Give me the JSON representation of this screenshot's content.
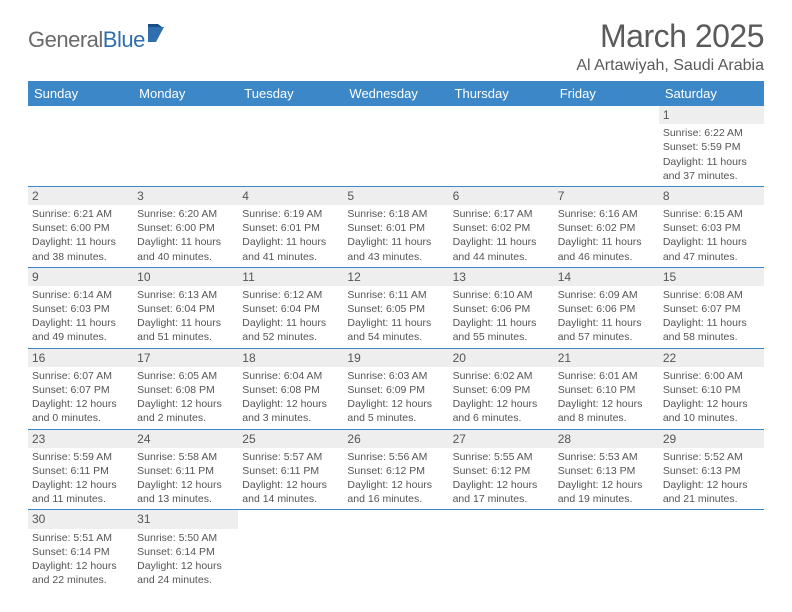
{
  "logo": {
    "text1": "General",
    "text2": "Blue"
  },
  "title": "March 2025",
  "location": "Al Artawiyah, Saudi Arabia",
  "colors": {
    "header_bg": "#3b87c8",
    "header_text": "#ffffff",
    "border": "#3b87c8",
    "daynum_bg": "#eeeeee",
    "text": "#555555",
    "logo_gray": "#6a6a6a",
    "logo_blue": "#2f6fb0"
  },
  "weekdays": [
    "Sunday",
    "Monday",
    "Tuesday",
    "Wednesday",
    "Thursday",
    "Friday",
    "Saturday"
  ],
  "weeks": [
    [
      null,
      null,
      null,
      null,
      null,
      null,
      {
        "n": "1",
        "l1": "Sunrise: 6:22 AM",
        "l2": "Sunset: 5:59 PM",
        "l3": "Daylight: 11 hours",
        "l4": "and 37 minutes."
      }
    ],
    [
      {
        "n": "2",
        "l1": "Sunrise: 6:21 AM",
        "l2": "Sunset: 6:00 PM",
        "l3": "Daylight: 11 hours",
        "l4": "and 38 minutes."
      },
      {
        "n": "3",
        "l1": "Sunrise: 6:20 AM",
        "l2": "Sunset: 6:00 PM",
        "l3": "Daylight: 11 hours",
        "l4": "and 40 minutes."
      },
      {
        "n": "4",
        "l1": "Sunrise: 6:19 AM",
        "l2": "Sunset: 6:01 PM",
        "l3": "Daylight: 11 hours",
        "l4": "and 41 minutes."
      },
      {
        "n": "5",
        "l1": "Sunrise: 6:18 AM",
        "l2": "Sunset: 6:01 PM",
        "l3": "Daylight: 11 hours",
        "l4": "and 43 minutes."
      },
      {
        "n": "6",
        "l1": "Sunrise: 6:17 AM",
        "l2": "Sunset: 6:02 PM",
        "l3": "Daylight: 11 hours",
        "l4": "and 44 minutes."
      },
      {
        "n": "7",
        "l1": "Sunrise: 6:16 AM",
        "l2": "Sunset: 6:02 PM",
        "l3": "Daylight: 11 hours",
        "l4": "and 46 minutes."
      },
      {
        "n": "8",
        "l1": "Sunrise: 6:15 AM",
        "l2": "Sunset: 6:03 PM",
        "l3": "Daylight: 11 hours",
        "l4": "and 47 minutes."
      }
    ],
    [
      {
        "n": "9",
        "l1": "Sunrise: 6:14 AM",
        "l2": "Sunset: 6:03 PM",
        "l3": "Daylight: 11 hours",
        "l4": "and 49 minutes."
      },
      {
        "n": "10",
        "l1": "Sunrise: 6:13 AM",
        "l2": "Sunset: 6:04 PM",
        "l3": "Daylight: 11 hours",
        "l4": "and 51 minutes."
      },
      {
        "n": "11",
        "l1": "Sunrise: 6:12 AM",
        "l2": "Sunset: 6:04 PM",
        "l3": "Daylight: 11 hours",
        "l4": "and 52 minutes."
      },
      {
        "n": "12",
        "l1": "Sunrise: 6:11 AM",
        "l2": "Sunset: 6:05 PM",
        "l3": "Daylight: 11 hours",
        "l4": "and 54 minutes."
      },
      {
        "n": "13",
        "l1": "Sunrise: 6:10 AM",
        "l2": "Sunset: 6:06 PM",
        "l3": "Daylight: 11 hours",
        "l4": "and 55 minutes."
      },
      {
        "n": "14",
        "l1": "Sunrise: 6:09 AM",
        "l2": "Sunset: 6:06 PM",
        "l3": "Daylight: 11 hours",
        "l4": "and 57 minutes."
      },
      {
        "n": "15",
        "l1": "Sunrise: 6:08 AM",
        "l2": "Sunset: 6:07 PM",
        "l3": "Daylight: 11 hours",
        "l4": "and 58 minutes."
      }
    ],
    [
      {
        "n": "16",
        "l1": "Sunrise: 6:07 AM",
        "l2": "Sunset: 6:07 PM",
        "l3": "Daylight: 12 hours",
        "l4": "and 0 minutes."
      },
      {
        "n": "17",
        "l1": "Sunrise: 6:05 AM",
        "l2": "Sunset: 6:08 PM",
        "l3": "Daylight: 12 hours",
        "l4": "and 2 minutes."
      },
      {
        "n": "18",
        "l1": "Sunrise: 6:04 AM",
        "l2": "Sunset: 6:08 PM",
        "l3": "Daylight: 12 hours",
        "l4": "and 3 minutes."
      },
      {
        "n": "19",
        "l1": "Sunrise: 6:03 AM",
        "l2": "Sunset: 6:09 PM",
        "l3": "Daylight: 12 hours",
        "l4": "and 5 minutes."
      },
      {
        "n": "20",
        "l1": "Sunrise: 6:02 AM",
        "l2": "Sunset: 6:09 PM",
        "l3": "Daylight: 12 hours",
        "l4": "and 6 minutes."
      },
      {
        "n": "21",
        "l1": "Sunrise: 6:01 AM",
        "l2": "Sunset: 6:10 PM",
        "l3": "Daylight: 12 hours",
        "l4": "and 8 minutes."
      },
      {
        "n": "22",
        "l1": "Sunrise: 6:00 AM",
        "l2": "Sunset: 6:10 PM",
        "l3": "Daylight: 12 hours",
        "l4": "and 10 minutes."
      }
    ],
    [
      {
        "n": "23",
        "l1": "Sunrise: 5:59 AM",
        "l2": "Sunset: 6:11 PM",
        "l3": "Daylight: 12 hours",
        "l4": "and 11 minutes."
      },
      {
        "n": "24",
        "l1": "Sunrise: 5:58 AM",
        "l2": "Sunset: 6:11 PM",
        "l3": "Daylight: 12 hours",
        "l4": "and 13 minutes."
      },
      {
        "n": "25",
        "l1": "Sunrise: 5:57 AM",
        "l2": "Sunset: 6:11 PM",
        "l3": "Daylight: 12 hours",
        "l4": "and 14 minutes."
      },
      {
        "n": "26",
        "l1": "Sunrise: 5:56 AM",
        "l2": "Sunset: 6:12 PM",
        "l3": "Daylight: 12 hours",
        "l4": "and 16 minutes."
      },
      {
        "n": "27",
        "l1": "Sunrise: 5:55 AM",
        "l2": "Sunset: 6:12 PM",
        "l3": "Daylight: 12 hours",
        "l4": "and 17 minutes."
      },
      {
        "n": "28",
        "l1": "Sunrise: 5:53 AM",
        "l2": "Sunset: 6:13 PM",
        "l3": "Daylight: 12 hours",
        "l4": "and 19 minutes."
      },
      {
        "n": "29",
        "l1": "Sunrise: 5:52 AM",
        "l2": "Sunset: 6:13 PM",
        "l3": "Daylight: 12 hours",
        "l4": "and 21 minutes."
      }
    ],
    [
      {
        "n": "30",
        "l1": "Sunrise: 5:51 AM",
        "l2": "Sunset: 6:14 PM",
        "l3": "Daylight: 12 hours",
        "l4": "and 22 minutes."
      },
      {
        "n": "31",
        "l1": "Sunrise: 5:50 AM",
        "l2": "Sunset: 6:14 PM",
        "l3": "Daylight: 12 hours",
        "l4": "and 24 minutes."
      },
      null,
      null,
      null,
      null,
      null
    ]
  ]
}
